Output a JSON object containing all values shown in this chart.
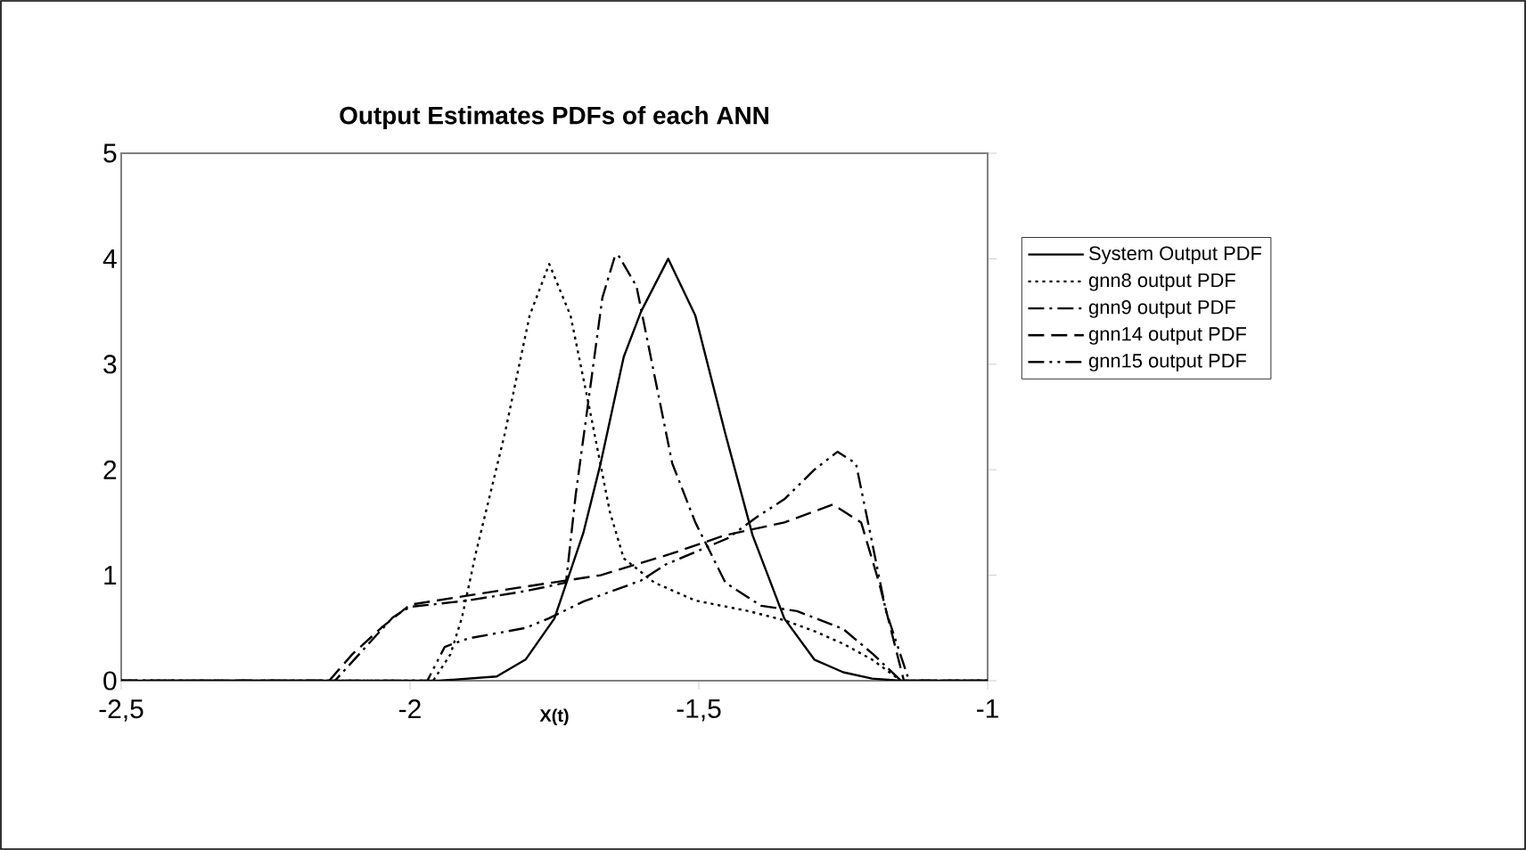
{
  "chart_data": {
    "type": "line",
    "title": "Output Estimates PDFs of each ANN",
    "xlabel": "X(t)",
    "xlim": [
      -2.5,
      -1
    ],
    "ylim": [
      0,
      5
    ],
    "xticks": [
      {
        "value": -2.5,
        "label": "-2,5"
      },
      {
        "value": -2,
        "label": "-2"
      },
      {
        "value": -1.5,
        "label": "-1,5"
      },
      {
        "value": -1,
        "label": "-1"
      }
    ],
    "yticks": [
      0,
      1,
      2,
      3,
      4,
      5
    ],
    "legend": "right",
    "grid": false,
    "series": [
      {
        "name": "System Output PDF",
        "color": "#000000",
        "line_style": "solid",
        "x": [
          -2.5,
          -1.95,
          -1.85,
          -1.8,
          -1.75,
          -1.7,
          -1.67,
          -1.63,
          -1.6,
          -1.553,
          -1.506,
          -1.454,
          -1.407,
          -1.352,
          -1.3,
          -1.25,
          -1.2,
          -1.15,
          -1
        ],
        "values": [
          0,
          0,
          0.04,
          0.2,
          0.59,
          1.4,
          2.06,
          3.07,
          3.5,
          4.0,
          3.46,
          2.34,
          1.38,
          0.59,
          0.2,
          0.08,
          0.02,
          0,
          0
        ]
      },
      {
        "name": "gnn8 output PDF",
        "color": "#000000",
        "line_style": "dotted",
        "x": [
          -2.5,
          -1.96,
          -1.93,
          -1.91,
          -1.886,
          -1.836,
          -1.793,
          -1.759,
          -1.722,
          -1.69,
          -1.654,
          -1.63,
          -1.577,
          -1.506,
          -1.414,
          -1.35,
          -1.3,
          -1.25,
          -1.2,
          -1.15,
          -1
        ],
        "values": [
          0,
          0,
          0.25,
          0.6,
          1.21,
          2.34,
          3.46,
          3.95,
          3.46,
          2.6,
          1.6,
          1.16,
          0.93,
          0.76,
          0.66,
          0.57,
          0.47,
          0.35,
          0.2,
          0,
          0
        ]
      },
      {
        "name": "gnn9 output PDF",
        "color": "#000000",
        "line_style": "dashdot",
        "x": [
          -2.5,
          -2.13,
          -2.08,
          -2.03,
          -2.0,
          -1.9,
          -1.8,
          -1.73,
          -1.713,
          -1.685,
          -1.667,
          -1.645,
          -1.639,
          -1.608,
          -1.577,
          -1.546,
          -1.506,
          -1.454,
          -1.392,
          -1.33,
          -1.25,
          -1.198,
          -1.15,
          -1
        ],
        "values": [
          0,
          0,
          0.3,
          0.6,
          0.7,
          0.76,
          0.85,
          0.93,
          1.77,
          2.9,
          3.63,
          4.03,
          4.03,
          3.74,
          2.9,
          2.06,
          1.5,
          0.93,
          0.71,
          0.66,
          0.49,
          0.25,
          0,
          0
        ]
      },
      {
        "name": "gnn14 output PDF",
        "color": "#000000",
        "line_style": "dashed",
        "x": [
          -2.5,
          -2.14,
          -2.1,
          -2.05,
          -2.0,
          -1.85,
          -1.67,
          -1.55,
          -1.454,
          -1.352,
          -1.268,
          -1.219,
          -1.188,
          -1.145,
          -1
        ],
        "values": [
          0,
          0,
          0.25,
          0.5,
          0.72,
          0.85,
          1.0,
          1.2,
          1.38,
          1.5,
          1.67,
          1.5,
          0.93,
          0,
          0
        ]
      },
      {
        "name": "gnn15 output PDF",
        "color": "#000000",
        "line_style": "dashdotdot",
        "x": [
          -2.5,
          -1.97,
          -1.94,
          -1.9,
          -1.8,
          -1.76,
          -1.7,
          -1.6,
          -1.558,
          -1.45,
          -1.4,
          -1.352,
          -1.3,
          -1.26,
          -1.228,
          -1.207,
          -1.176,
          -1.136,
          -1
        ],
        "values": [
          0,
          0,
          0.32,
          0.4,
          0.5,
          0.59,
          0.75,
          0.95,
          1.1,
          1.35,
          1.55,
          1.72,
          2.0,
          2.17,
          2.06,
          1.5,
          0.66,
          0,
          0
        ]
      }
    ]
  }
}
